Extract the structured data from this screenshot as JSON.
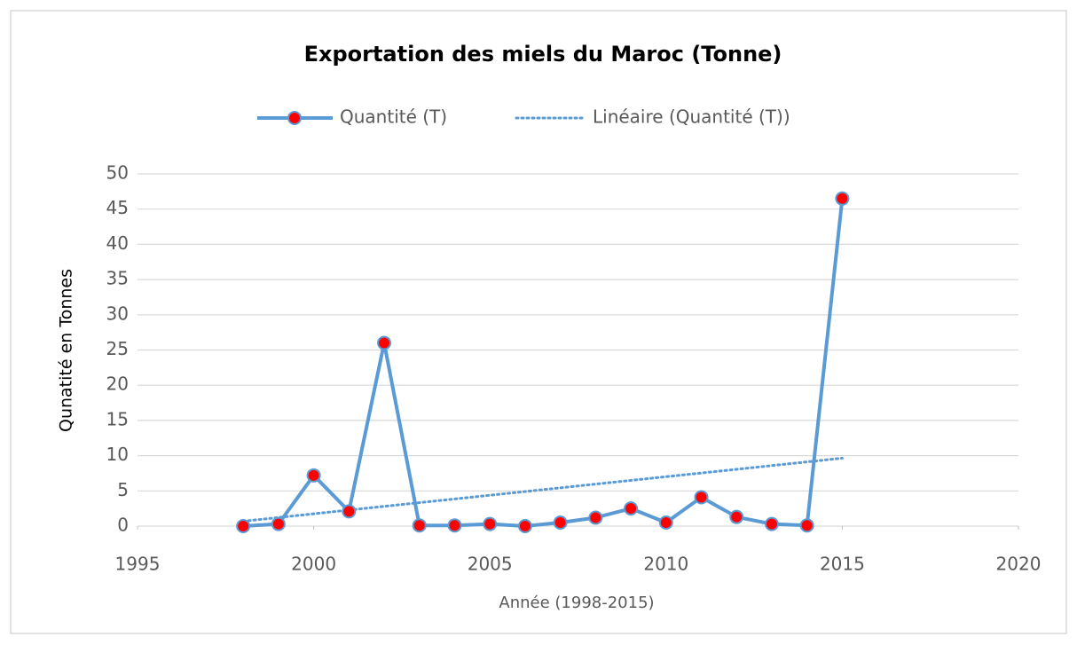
{
  "chart_data": {
    "type": "line",
    "title": "Exportation des miels du Maroc (Tonne)",
    "x_label": "Année (1998-2015)",
    "y_label": "Qunatité en Tonnes",
    "x": [
      1998,
      1999,
      2000,
      2001,
      2002,
      2003,
      2004,
      2005,
      2006,
      2007,
      2008,
      2009,
      2010,
      2011,
      2012,
      2013,
      2014,
      2015
    ],
    "series": [
      {
        "name": "Quantité (T)",
        "color": "#5b9bd5",
        "marker_color": "#ff0000",
        "values": [
          0,
          0.3,
          7.2,
          2.1,
          26,
          0.1,
          0.1,
          0.3,
          0,
          0.5,
          1.2,
          2.5,
          0.5,
          4.1,
          1.3,
          0.3,
          0.1,
          46.5
        ]
      }
    ],
    "trendline": {
      "name": "Linéaire (Quantité (T))",
      "kind": "linear",
      "color": "#5b9bd5"
    },
    "xlim": [
      1995,
      2020
    ],
    "xticks": [
      1995,
      2000,
      2005,
      2010,
      2015,
      2020
    ],
    "ylim": [
      0,
      50
    ],
    "yticks": [
      0,
      5,
      10,
      15,
      20,
      25,
      30,
      35,
      40,
      45,
      50
    ],
    "grid": true,
    "legend": "top"
  }
}
